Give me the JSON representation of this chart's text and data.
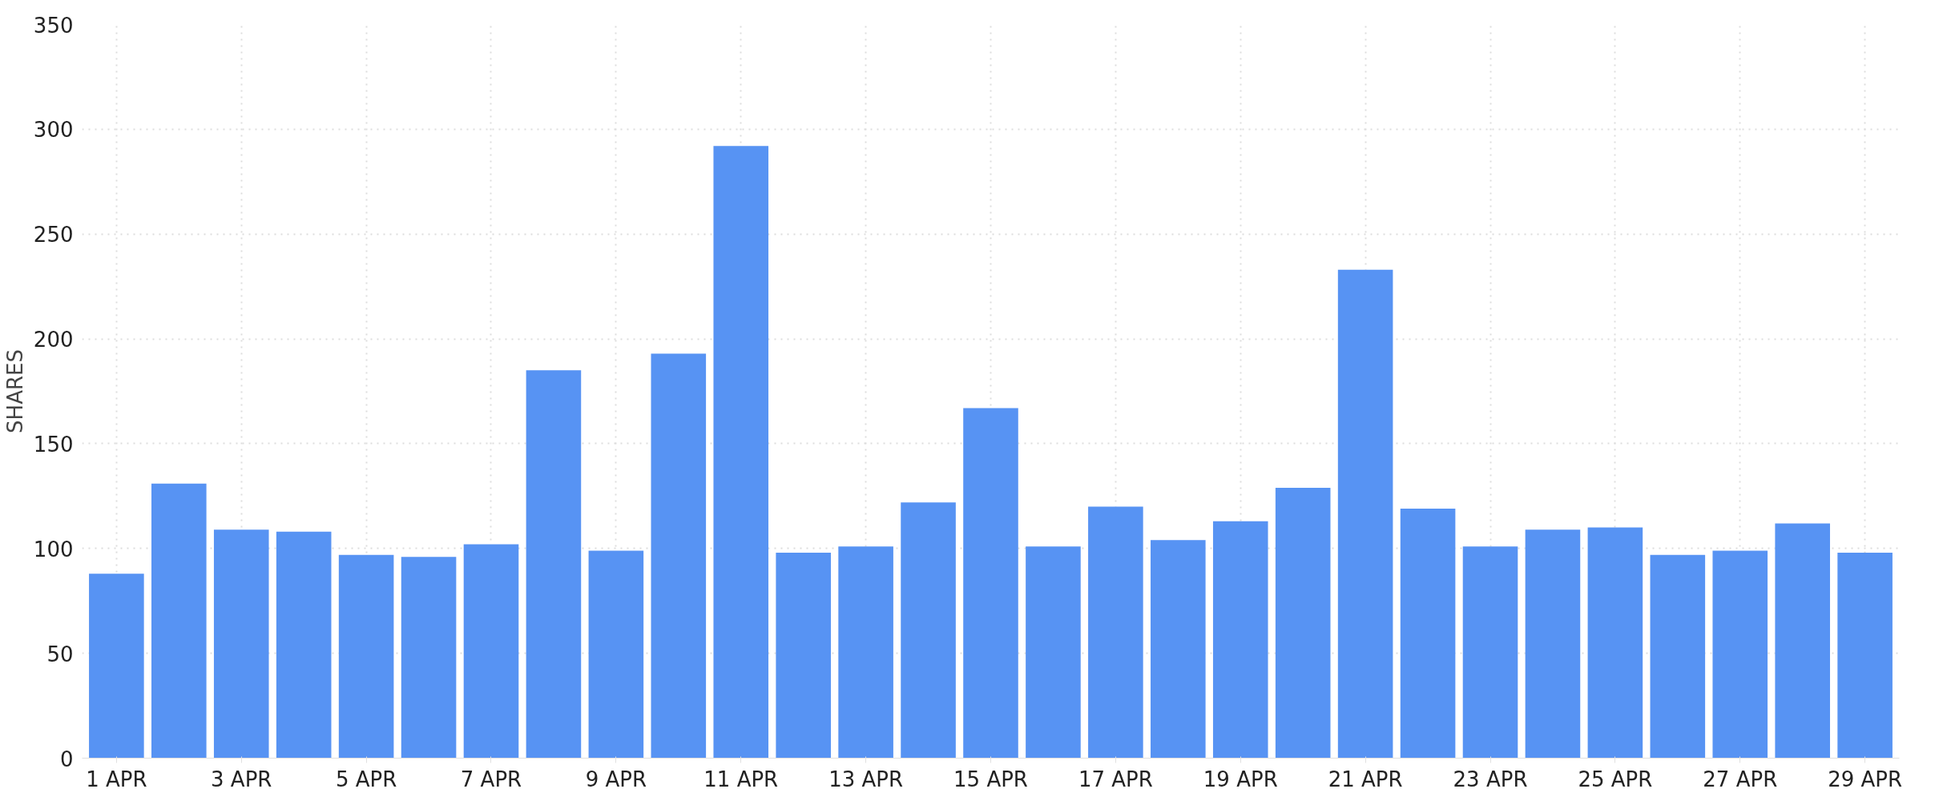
{
  "chart_data": {
    "type": "bar",
    "ylabel": "SHARES",
    "categories": [
      "1 APR",
      null,
      "3 APR",
      null,
      "5 APR",
      null,
      "7 APR",
      null,
      "9 APR",
      null,
      "11 APR",
      null,
      "13 APR",
      null,
      "15 APR",
      null,
      "17 APR",
      null,
      "19 APR",
      null,
      "21 APR",
      null,
      "23 APR",
      null,
      "25 APR",
      null,
      "27 APR",
      null,
      "29 APR"
    ],
    "values": [
      88,
      131,
      109,
      108,
      97,
      96,
      102,
      185,
      99,
      193,
      292,
      98,
      101,
      122,
      167,
      101,
      120,
      104,
      113,
      129,
      233,
      119,
      101,
      109,
      110,
      97,
      99,
      112,
      98
    ],
    "color": "#5793f3",
    "ylim": [
      0,
      350
    ],
    "yticks": [
      0,
      50,
      100,
      150,
      200,
      250,
      300,
      350
    ],
    "grid": true
  }
}
